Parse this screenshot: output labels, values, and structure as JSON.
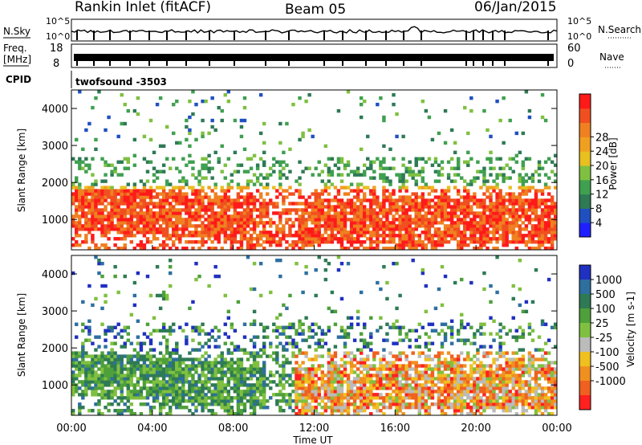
{
  "header": {
    "station": "Rankin Inlet (fitACF)",
    "beam": "Beam 05",
    "date": "06/Jan/2015"
  },
  "chart_data": [
    {
      "type": "line",
      "id": "noise",
      "left_label": "N.Sky",
      "right_label": "N.Search",
      "left_ticks": [
        "10^5",
        "10^0"
      ],
      "right_ticks": [
        "10^5",
        "10^0"
      ]
    },
    {
      "type": "line",
      "id": "freq",
      "left_label_lines": [
        "Freq.",
        "[MHz]"
      ],
      "left_ticks": [
        "18",
        "8"
      ],
      "right_label": "Nave",
      "right_ticks": [
        "60",
        "0"
      ]
    },
    {
      "type": "table",
      "id": "cpid",
      "label": "CPID",
      "value": "twofsound  -3503"
    },
    {
      "type": "heatmap",
      "id": "power",
      "ylabel": "Slant Range [km]",
      "ylim": [
        180,
        4500
      ],
      "yticks": [
        1000,
        2000,
        3000,
        4000
      ],
      "xlim": [
        0,
        24
      ],
      "colorbar": {
        "label": "Power [dB]",
        "ticks": [
          4,
          8,
          12,
          16,
          20,
          24,
          28
        ],
        "colors": [
          "#1f1fff",
          "#2050c0",
          "#2e7a55",
          "#3fa050",
          "#7fc040",
          "#e8c020",
          "#f0a020",
          "#f08020",
          "#f05020",
          "#ff1a1a"
        ]
      }
    },
    {
      "type": "heatmap",
      "id": "velocity",
      "ylabel": "Slant Range [km]",
      "ylim": [
        180,
        4500
      ],
      "yticks": [
        1000,
        2000,
        3000,
        4000
      ],
      "xlabel": "Time UT",
      "xlim": [
        0,
        24
      ],
      "xticks": [
        "00:00",
        "04:00",
        "08:00",
        "12:00",
        "16:00",
        "20:00",
        "00:00"
      ],
      "colorbar": {
        "label": "Velocity  [m s-1]",
        "ticks": [
          "1000",
          "500",
          "100",
          "25",
          "-25",
          "-100",
          "-500",
          "-1000"
        ],
        "colors": [
          "#2030c0",
          "#2e6fa0",
          "#2e7a55",
          "#4ea03a",
          "#80c040",
          "#bbbbbb",
          "#f0c020",
          "#f09020",
          "#f06020",
          "#ff2020"
        ]
      }
    }
  ]
}
